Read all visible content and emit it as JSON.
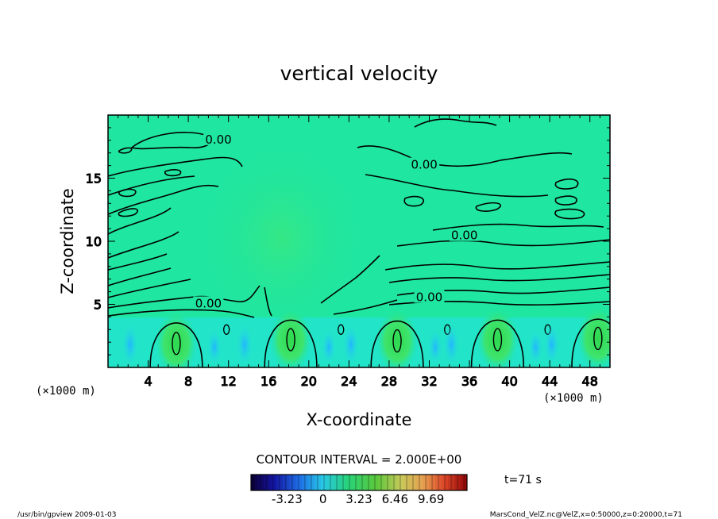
{
  "chart_data": {
    "type": "heatmap",
    "title": "vertical velocity",
    "xlabel": "X-coordinate",
    "ylabel": "Z-coordinate",
    "x_unit_left": "(×1000 m)",
    "x_unit_right": "(×1000 m)",
    "xlim": [
      0,
      50
    ],
    "ylim": [
      0,
      20
    ],
    "x_ticks": [
      4,
      8,
      12,
      16,
      20,
      24,
      28,
      32,
      36,
      40,
      44,
      48
    ],
    "y_ticks": [
      5,
      10,
      15
    ],
    "contour_labels": [
      {
        "text": "0.00",
        "x": 11.0,
        "z": 18.0
      },
      {
        "text": "0.00",
        "x": 31.5,
        "z": 16.0
      },
      {
        "text": "0.00",
        "x": 35.5,
        "z": 10.4
      },
      {
        "text": "0.00",
        "x": 32.0,
        "z": 5.5
      },
      {
        "text": "0.00",
        "x": 10.0,
        "z": 5.0
      }
    ],
    "updrafts": [
      {
        "x": 6.8,
        "z": 1.9
      },
      {
        "x": 18.2,
        "z": 2.2
      },
      {
        "x": 28.8,
        "z": 2.1
      },
      {
        "x": 38.8,
        "z": 2.2
      },
      {
        "x": 48.8,
        "z": 2.3
      }
    ],
    "contour_interval": "CONTOUR INTERVAL = 2.000E+00",
    "colorbar": {
      "range": [
        -6.46,
        12.92
      ],
      "tick_labels": [
        "-3.23",
        "0",
        "3.23",
        "6.46",
        "9.69"
      ],
      "tick_values": [
        -3.23,
        0,
        3.23,
        6.46,
        9.69
      ]
    },
    "time_label": "t=71 s",
    "footer_left": "/usr/bin/gpview   2009-01-03",
    "footer_right": "MarsCond_VelZ.nc@VelZ,x=0:50000,z=0:20000,t=71"
  }
}
